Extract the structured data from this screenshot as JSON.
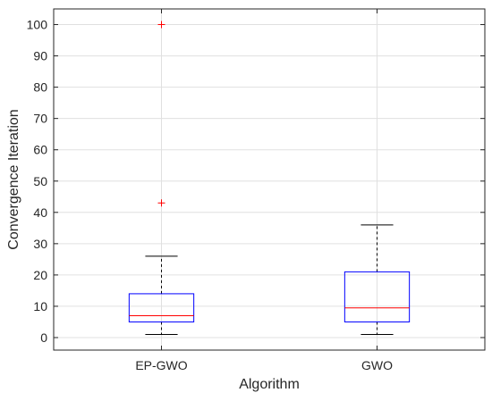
{
  "chart_data": {
    "type": "box",
    "title": "",
    "xlabel": "Algorithm",
    "ylabel": "Convergence Iteration",
    "categories": [
      "EP-GWO",
      "GWO"
    ],
    "ylim": [
      -4,
      105
    ],
    "yticks": [
      0,
      10,
      20,
      30,
      40,
      50,
      60,
      70,
      80,
      90,
      100
    ],
    "grid": true,
    "boxes": [
      {
        "name": "EP-GWO",
        "min": 1,
        "q1": 5,
        "median": 7,
        "q3": 14,
        "max": 26,
        "outliers": [
          43,
          100
        ]
      },
      {
        "name": "GWO",
        "min": 1,
        "q1": 5,
        "median": 9.5,
        "q3": 21,
        "max": 36,
        "outliers": []
      }
    ],
    "colors": {
      "box": "#0000ff",
      "median": "#ff0000",
      "whisker": "#000000",
      "outlier": "#ff0000",
      "grid": "#e0e0e0",
      "axis": "#262626"
    }
  }
}
